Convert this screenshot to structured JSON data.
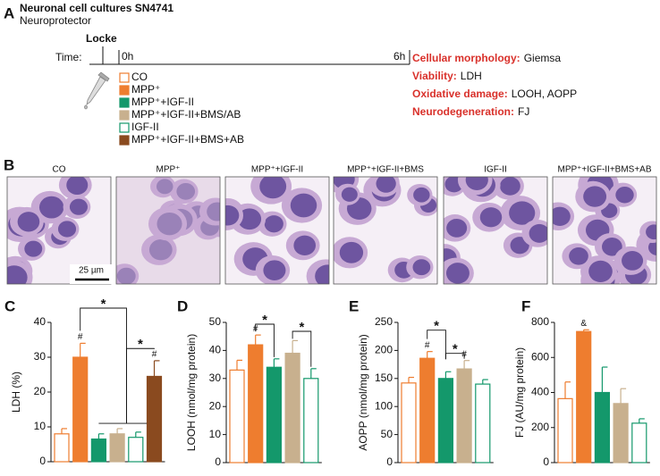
{
  "panel_a": {
    "letter": "A",
    "title": "Neuronal cell cultures SN4741",
    "subtitle": "Neuroprotector",
    "pretreatment": "Locke",
    "time_label": "Time:",
    "start": "0h",
    "end": "6h",
    "treatments": [
      {
        "label": "CO",
        "color": "#ee7d2f",
        "filled": false
      },
      {
        "label": "MPP⁺",
        "color": "#ee7d2f",
        "filled": true
      },
      {
        "label": "MPP⁺+IGF-II",
        "color": "#14986b",
        "filled": true
      },
      {
        "label": "MPP⁺+IGF-II+BMS/AB",
        "color": "#c8b08e",
        "filled": true
      },
      {
        "label": "IGF-II",
        "color": "#14986b",
        "filled": false
      },
      {
        "label": "MPP⁺+IGF-II+BMS+AB",
        "color": "#8a4a1f",
        "filled": true
      }
    ],
    "assays": [
      {
        "label": "Cellular morphology:",
        "method": "Giemsa"
      },
      {
        "label": "Viability:",
        "method": "LDH"
      },
      {
        "label": "Oxidative damage:",
        "method": "LOOH,  AOPP"
      },
      {
        "label": "Neurodegeneration:",
        "method": "FJ"
      }
    ]
  },
  "panel_b": {
    "letter": "B",
    "images": [
      "CO",
      "MPP⁺",
      "MPP⁺+IGF-II",
      "MPP⁺+IGF-II+BMS",
      "IGF-II",
      "MPP⁺+IGF-II+BMS+AB"
    ],
    "scale_bar": "25 µm"
  },
  "chart_data": [
    {
      "type": "bar",
      "letter": "C",
      "ylabel": "LDH (%)",
      "values": [
        8,
        30,
        6.5,
        8,
        7,
        24.5
      ],
      "errors": [
        1.5,
        4,
        1.5,
        1.5,
        1.5,
        4.5
      ],
      "colors": [
        "#ee7d2f",
        "#ee7d2f",
        "#14986b",
        "#c8b08e",
        "#14986b",
        "#8a4a1f"
      ],
      "filled": [
        false,
        true,
        true,
        true,
        false,
        true
      ],
      "ylim": [
        0,
        40
      ],
      "yticks": [
        0,
        10,
        20,
        30,
        40
      ],
      "annotations": [
        "#",
        "#",
        "*",
        "*"
      ]
    },
    {
      "type": "bar",
      "letter": "D",
      "ylabel": "LOOH (nmol/mg protein)",
      "values": [
        33,
        42,
        34,
        39,
        30
      ],
      "errors": [
        3.5,
        3.5,
        3,
        4.5,
        3.5
      ],
      "colors": [
        "#ee7d2f",
        "#ee7d2f",
        "#14986b",
        "#c8b08e",
        "#14986b"
      ],
      "filled": [
        false,
        true,
        true,
        true,
        false
      ],
      "ylim": [
        0,
        50
      ],
      "yticks": [
        0,
        10,
        20,
        30,
        40,
        50
      ],
      "annotations": [
        "#",
        "*",
        "*"
      ]
    },
    {
      "type": "bar",
      "letter": "E",
      "ylabel": "AOPP (nmol/mg protein)",
      "values": [
        142,
        186,
        150,
        167,
        140
      ],
      "errors": [
        10,
        12,
        12,
        15,
        8
      ],
      "colors": [
        "#ee7d2f",
        "#ee7d2f",
        "#14986b",
        "#c8b08e",
        "#14986b"
      ],
      "filled": [
        false,
        true,
        true,
        true,
        false
      ],
      "ylim": [
        0,
        250
      ],
      "yticks": [
        0,
        50,
        100,
        150,
        200,
        250
      ],
      "annotations": [
        "#",
        "#",
        "*",
        "*"
      ]
    },
    {
      "type": "bar",
      "letter": "F",
      "ylabel": "FJ (AU/mg protein)",
      "values": [
        365,
        748,
        400,
        337,
        225
      ],
      "errors": [
        95,
        10,
        145,
        85,
        25
      ],
      "colors": [
        "#ee7d2f",
        "#ee7d2f",
        "#14986b",
        "#c8b08e",
        "#14986b"
      ],
      "filled": [
        false,
        true,
        true,
        true,
        false
      ],
      "ylim": [
        0,
        800
      ],
      "yticks": [
        0,
        200,
        400,
        600,
        800
      ],
      "annotations": [
        "&"
      ]
    }
  ]
}
